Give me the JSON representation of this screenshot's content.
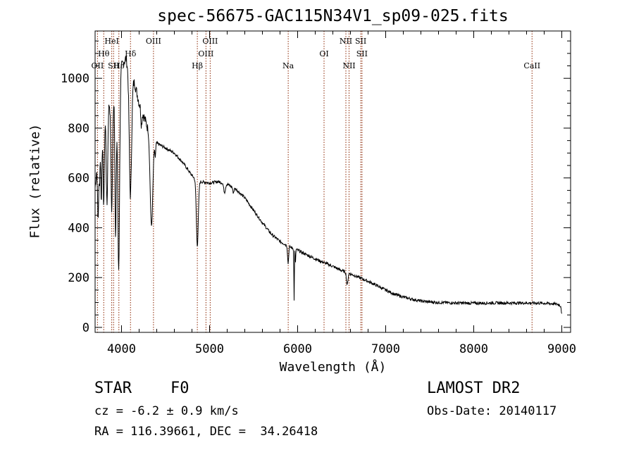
{
  "chart_data": {
    "type": "line",
    "title": "spec-56675-GAC115N34V1_sp09-025.fits",
    "xlabel": "Wavelength (Å)",
    "ylabel": "Flux (relative)",
    "xlim": [
      3700,
      9100
    ],
    "ylim": [
      -20,
      1190
    ],
    "xticks": [
      4000,
      5000,
      6000,
      7000,
      8000,
      9000
    ],
    "yticks": [
      0,
      200,
      400,
      600,
      800,
      1000
    ],
    "grid": false,
    "line_color": "#000000",
    "marker_line_color": "#8b2500",
    "lines": [
      {
        "label": "OII",
        "x": 3727,
        "row": 2
      },
      {
        "label": "Hθ",
        "x": 3798,
        "row": 1
      },
      {
        "label": "HeI",
        "x": 3889,
        "row": 0
      },
      {
        "label": "SII",
        "x": 3910,
        "row": 2
      },
      {
        "label": "Hε",
        "x": 3970,
        "row": 2
      },
      {
        "label": "Hδ",
        "x": 4102,
        "row": 1
      },
      {
        "label": "OIII",
        "x": 4363,
        "row": 0
      },
      {
        "label": "Hβ",
        "x": 4861,
        "row": 2
      },
      {
        "label": "OIII",
        "x": 4959,
        "row": 1
      },
      {
        "label": "OIII",
        "x": 5007,
        "row": 0
      },
      {
        "label": "Na",
        "x": 5893,
        "row": 2
      },
      {
        "label": "OI",
        "x": 6300,
        "row": 1
      },
      {
        "label": "NII",
        "x": 6548,
        "row": 0
      },
      {
        "label": "NII",
        "x": 6584,
        "row": 2
      },
      {
        "label": "SII",
        "x": 6717,
        "row": 0
      },
      {
        "label": "SII",
        "x": 6731,
        "row": 1
      },
      {
        "label": "CaII",
        "x": 8662,
        "row": 2
      }
    ],
    "continuum": [
      [
        3700,
        560
      ],
      [
        3750,
        760
      ],
      [
        3800,
        820
      ],
      [
        3850,
        890
      ],
      [
        3900,
        930
      ],
      [
        3950,
        900
      ],
      [
        4000,
        1050
      ],
      [
        4050,
        1080
      ],
      [
        4100,
        1010
      ],
      [
        4150,
        980
      ],
      [
        4200,
        900
      ],
      [
        4250,
        850
      ],
      [
        4300,
        800
      ],
      [
        4350,
        760
      ],
      [
        4400,
        740
      ],
      [
        4500,
        720
      ],
      [
        4600,
        700
      ],
      [
        4700,
        660
      ],
      [
        4800,
        610
      ],
      [
        4850,
        590
      ],
      [
        4900,
        585
      ],
      [
        5000,
        580
      ],
      [
        5100,
        585
      ],
      [
        5200,
        575
      ],
      [
        5300,
        555
      ],
      [
        5400,
        520
      ],
      [
        5500,
        470
      ],
      [
        5600,
        420
      ],
      [
        5700,
        375
      ],
      [
        5800,
        345
      ],
      [
        5900,
        325
      ],
      [
        6000,
        310
      ],
      [
        6100,
        292
      ],
      [
        6200,
        275
      ],
      [
        6300,
        260
      ],
      [
        6400,
        245
      ],
      [
        6500,
        228
      ],
      [
        6600,
        215
      ],
      [
        6700,
        200
      ],
      [
        6800,
        185
      ],
      [
        6900,
        168
      ],
      [
        7000,
        150
      ],
      [
        7100,
        133
      ],
      [
        7200,
        122
      ],
      [
        7300,
        113
      ],
      [
        7400,
        106
      ],
      [
        7500,
        102
      ],
      [
        7600,
        100
      ],
      [
        7800,
        98
      ],
      [
        8000,
        97
      ],
      [
        8200,
        98
      ],
      [
        8400,
        98
      ],
      [
        8600,
        98
      ],
      [
        8800,
        97
      ],
      [
        8900,
        95
      ],
      [
        8960,
        92
      ],
      [
        8990,
        85
      ],
      [
        9000,
        50
      ]
    ],
    "absorption": [
      {
        "x": 3734,
        "depth": 260,
        "sigma": 6
      },
      {
        "x": 3750,
        "depth": 180,
        "sigma": 6
      },
      {
        "x": 3771,
        "depth": 280,
        "sigma": 6
      },
      {
        "x": 3798,
        "depth": 320,
        "sigma": 7
      },
      {
        "x": 3835,
        "depth": 380,
        "sigma": 8
      },
      {
        "x": 3889,
        "depth": 450,
        "sigma": 9
      },
      {
        "x": 3933,
        "depth": 560,
        "sigma": 7
      },
      {
        "x": 3968,
        "depth": 720,
        "sigma": 10
      },
      {
        "x": 4101,
        "depth": 480,
        "sigma": 13
      },
      {
        "x": 4226,
        "depth": 60,
        "sigma": 6
      },
      {
        "x": 4340,
        "depth": 360,
        "sigma": 15
      },
      {
        "x": 4383,
        "depth": 60,
        "sigma": 5
      },
      {
        "x": 4861,
        "depth": 260,
        "sigma": 11
      },
      {
        "x": 5170,
        "depth": 35,
        "sigma": 10
      },
      {
        "x": 5270,
        "depth": 20,
        "sigma": 7
      },
      {
        "x": 5892,
        "depth": 70,
        "sigma": 6
      },
      {
        "x": 5960,
        "depth": 210,
        "sigma": 3
      },
      {
        "x": 5975,
        "depth": 60,
        "sigma": 3
      },
      {
        "x": 6563,
        "depth": 50,
        "sigma": 8
      }
    ],
    "noise": {
      "seed": 7,
      "amplitude": 12,
      "sample_step": 4
    },
    "annotations": {
      "object_class": "STAR",
      "subclass": "F0",
      "redshift": "cz = -6.2 ± 0.9 km/s",
      "coordinates": "RA = 116.39661, DEC =  34.26418",
      "survey": "LAMOST DR2",
      "obs_date": "Obs-Date: 20140117"
    }
  }
}
